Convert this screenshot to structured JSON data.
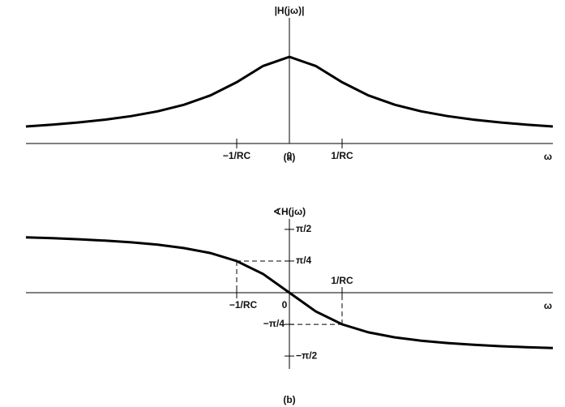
{
  "chart_data": [
    {
      "type": "line",
      "ylabel": "|H(jω)|",
      "xlabel": "ω",
      "caption": "(a)",
      "x": [
        -5,
        -4.5,
        -4,
        -3.5,
        -3,
        -2.5,
        -2,
        -1.5,
        -1,
        -0.5,
        0,
        0.5,
        1,
        1.5,
        2,
        2.5,
        3,
        3.5,
        4,
        4.5,
        5
      ],
      "series": [
        {
          "color": "#000000",
          "values": [
            0.196,
            0.217,
            0.243,
            0.275,
            0.316,
            0.371,
            0.447,
            0.555,
            0.707,
            0.894,
            1,
            0.894,
            0.707,
            0.555,
            0.447,
            0.371,
            0.316,
            0.275,
            0.243,
            0.217,
            0.196
          ]
        }
      ],
      "xlim": [
        -5,
        5
      ],
      "ylim": [
        0,
        1.45
      ],
      "xticks": [
        {
          "value": -1,
          "label": "−1/RC"
        },
        0,
        {
          "value": 1,
          "label": "1/RC"
        }
      ]
    },
    {
      "type": "line",
      "ylabel": "∢H(jω)",
      "xlabel": "ω",
      "caption": "(b)",
      "x": [
        -5,
        -4.5,
        -4,
        -3.5,
        -3,
        -2.5,
        -2,
        -1.5,
        -1,
        -0.5,
        0,
        0.5,
        1,
        1.5,
        2,
        2.5,
        3,
        3.5,
        4,
        4.5,
        5
      ],
      "series": [
        {
          "color": "#000000",
          "values": [
            1.373,
            1.352,
            1.326,
            1.292,
            1.249,
            1.19,
            1.107,
            0.983,
            0.785,
            0.464,
            0,
            -0.464,
            -0.785,
            -0.983,
            -1.107,
            -1.19,
            -1.249,
            -1.292,
            -1.326,
            -1.352,
            -1.373
          ]
        }
      ],
      "xlim": [
        -5,
        5
      ],
      "ylim": [
        -1.89,
        1.83
      ],
      "xticks": [
        {
          "value": -1,
          "label": "−1/RC"
        },
        0,
        {
          "value": 1,
          "label": "1/RC"
        }
      ],
      "yticks": [
        {
          "value": 1.5708,
          "label": "π/2"
        },
        {
          "value": 0.7854,
          "label": "π/4"
        },
        {
          "value": -0.7854,
          "label": "−π/4"
        },
        {
          "value": -1.5708,
          "label": "−π/2"
        }
      ],
      "dashed_guides": true
    }
  ]
}
